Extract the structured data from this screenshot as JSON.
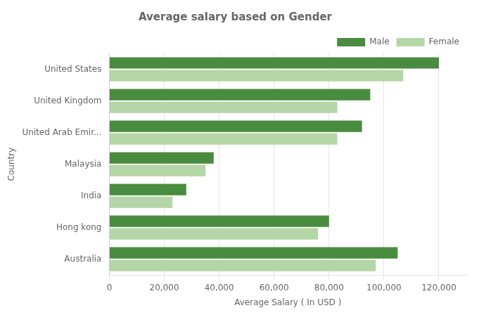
{
  "chart_data": {
    "type": "bar",
    "orientation": "horizontal",
    "title": "Average salary based on Gender",
    "xlabel": "Average Salary ( In USD )",
    "ylabel": "Country",
    "categories": [
      "United States",
      "United Kingdom",
      "United Arab Emir...",
      "Malaysia",
      "India",
      "Hong kong",
      "Australia"
    ],
    "series": [
      {
        "name": "Male",
        "color": "#4a8c3f",
        "values": [
          120000,
          95000,
          92000,
          38000,
          28000,
          80000,
          105000
        ]
      },
      {
        "name": "Female",
        "color": "#b5d6a7",
        "values": [
          107000,
          83000,
          83000,
          35000,
          23000,
          76000,
          97000
        ]
      }
    ],
    "xlim": [
      0,
      130000
    ],
    "xticks": [
      0,
      {
        "value": 20000,
        "label": "20,000"
      },
      {
        "value": 40000,
        "label": "40,000"
      },
      {
        "value": 60000,
        "label": "60,000"
      },
      {
        "value": 80000,
        "label": "80,000"
      },
      {
        "value": 100000,
        "label": "100,000"
      },
      {
        "value": 120000,
        "label": "120,000"
      }
    ],
    "grid": true,
    "legend": "upper right"
  }
}
